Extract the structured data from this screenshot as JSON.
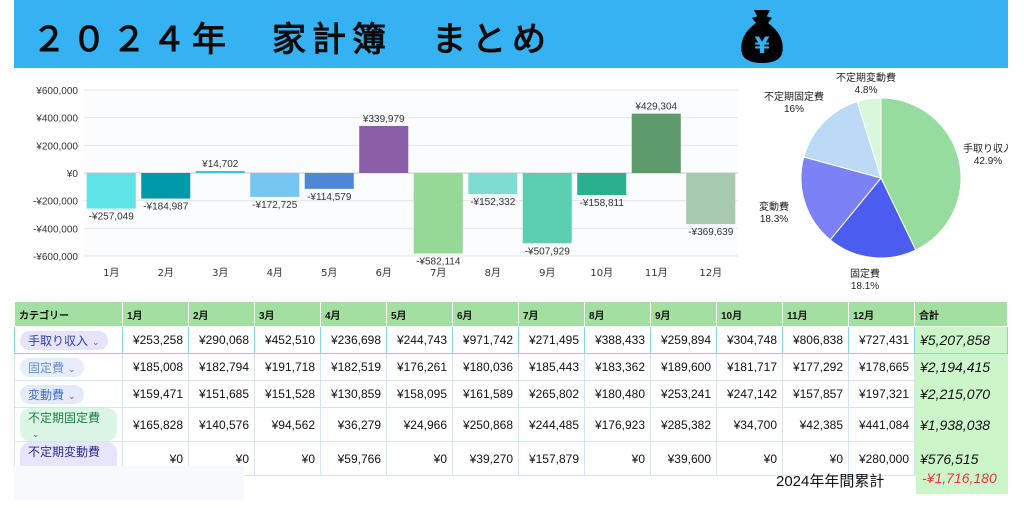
{
  "header": {
    "title": "２０２４年　家計簿　まとめ",
    "bg_color": "#34b2f2",
    "icon": "money-bag-yen-icon",
    "icon_glyph": "¥"
  },
  "chart_data": [
    {
      "type": "bar",
      "categories": [
        "1月",
        "2月",
        "3月",
        "4月",
        "5月",
        "6月",
        "7月",
        "8月",
        "9月",
        "10月",
        "11月",
        "12月"
      ],
      "values": [
        -257049,
        -184987,
        14702,
        -172725,
        -114579,
        339979,
        -582114,
        -152332,
        -507929,
        -158811,
        429304,
        -369639
      ],
      "data_labels": [
        "-¥257,049",
        "-¥184,987",
        "¥14,702",
        "-¥172,725",
        "-¥114,579",
        "¥339,979",
        "-¥582,114",
        "-¥152,332",
        "-¥507,929",
        "-¥158,811",
        "¥429,304",
        "-¥369,639"
      ],
      "colors": [
        "#5ee3e6",
        "#0099a9",
        "#3fc0e8",
        "#76c6f2",
        "#4f86d6",
        "#8b5fa8",
        "#95d996",
        "#7edcd2",
        "#5ccfb3",
        "#2ab08e",
        "#5e9b6a",
        "#a6c9b0"
      ],
      "ylim": [
        -600000,
        600000
      ],
      "yticks": [
        600000,
        400000,
        200000,
        0,
        -200000,
        -400000,
        -600000
      ],
      "ytick_labels": [
        "¥600,000",
        "¥400,000",
        "¥200,000",
        "¥0",
        "-¥200,000",
        "-¥400,000",
        "-¥600,000"
      ],
      "grid": true
    },
    {
      "type": "pie",
      "slices": [
        {
          "label": "手取り収入",
          "pct": "42.9%",
          "value": 42.9,
          "color": "#95dc9e"
        },
        {
          "label": "固定費",
          "pct": "18.1%",
          "value": 18.1,
          "color": "#4b5cf0"
        },
        {
          "label": "変動費",
          "pct": "18.3%",
          "value": 18.3,
          "color": "#7c82f5"
        },
        {
          "label": "不定期固定費",
          "pct": "16%",
          "value": 16.0,
          "color": "#bcd9f5"
        },
        {
          "label": "不定期変動費",
          "pct": "4.8%",
          "value": 4.8,
          "color": "#d8f7dc"
        }
      ]
    }
  ],
  "table": {
    "headers": [
      "カテゴリー",
      "1月",
      "2月",
      "3月",
      "4月",
      "5月",
      "6月",
      "7月",
      "8月",
      "9月",
      "10月",
      "11月",
      "12月",
      "合計"
    ],
    "rows": [
      {
        "category": "手取り収入",
        "chip_color": "#e6e3fb",
        "text_color": "#2d3faa",
        "values": [
          "¥253,258",
          "¥290,068",
          "¥452,510",
          "¥236,698",
          "¥244,743",
          "¥971,742",
          "¥271,495",
          "¥388,433",
          "¥259,894",
          "¥304,748",
          "¥806,838",
          "¥727,431"
        ],
        "total": "¥5,207,858"
      },
      {
        "category": "固定費",
        "chip_color": "#e8edfb",
        "text_color": "#6b8ecf",
        "values": [
          "¥185,008",
          "¥182,794",
          "¥191,718",
          "¥182,519",
          "¥176,261",
          "¥180,036",
          "¥185,443",
          "¥183,362",
          "¥189,600",
          "¥181,717",
          "¥177,292",
          "¥178,665"
        ],
        "total": "¥2,194,415"
      },
      {
        "category": "変動費",
        "chip_color": "#e3ebfa",
        "text_color": "#3f6fc6",
        "values": [
          "¥159,471",
          "¥151,685",
          "¥151,528",
          "¥130,859",
          "¥158,095",
          "¥161,589",
          "¥265,802",
          "¥180,480",
          "¥253,241",
          "¥247,142",
          "¥157,857",
          "¥197,321"
        ],
        "total": "¥2,215,070"
      },
      {
        "category": "不定期固定費",
        "chip_color": "#dcf6e6",
        "text_color": "#1f7a45",
        "values": [
          "¥165,828",
          "¥140,576",
          "¥94,562",
          "¥36,279",
          "¥24,966",
          "¥250,868",
          "¥244,485",
          "¥176,923",
          "¥285,382",
          "¥34,700",
          "¥42,385",
          "¥441,084"
        ],
        "total": "¥1,938,038"
      },
      {
        "category": "不定期変動費",
        "chip_color": "#e7e5fb",
        "text_color": "#2b2d88",
        "values": [
          "¥0",
          "¥0",
          "¥0",
          "¥59,766",
          "¥0",
          "¥39,270",
          "¥157,879",
          "¥0",
          "¥39,600",
          "¥0",
          "¥0",
          "¥280,000"
        ],
        "total": "¥576,515"
      }
    ],
    "chevron": "⌄"
  },
  "summary": {
    "label": "2024年年間累計",
    "value": "-¥1,716,180",
    "value_color": "#e23b3b"
  }
}
